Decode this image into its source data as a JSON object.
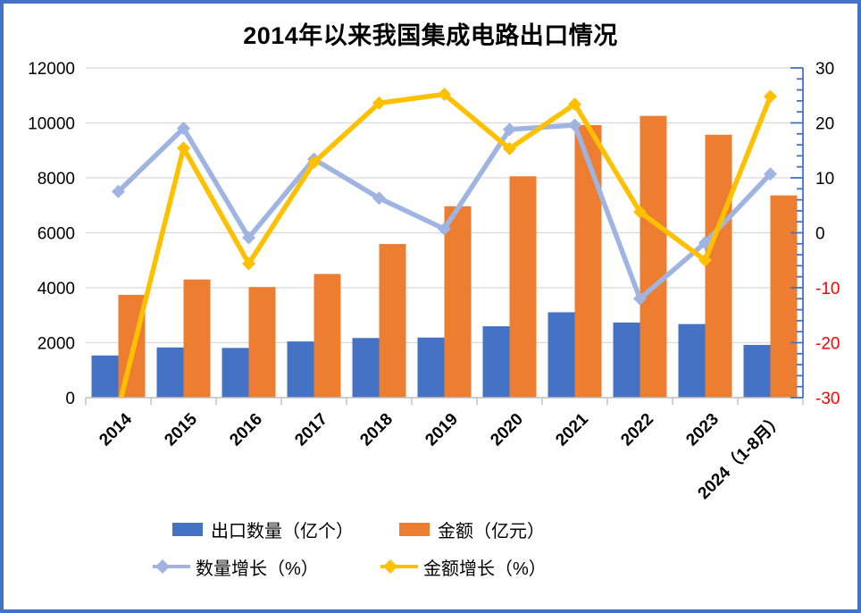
{
  "window": {
    "border_color": "#4472C4",
    "background": "#FFFFFF"
  },
  "title": "2014年以来我国集成电路出口情况",
  "chart_data": {
    "type": "combo (bar + line)",
    "categories": [
      "2014",
      "2015",
      "2016",
      "2017",
      "2018",
      "2019",
      "2020",
      "2021",
      "2022",
      "2023",
      "2024（1-8月）"
    ],
    "series": [
      {
        "name": "出口数量（亿个）",
        "type": "bar",
        "axis": "left",
        "color": "#4472C4",
        "values": [
          1535,
          1827,
          1810,
          2045,
          2171,
          2187,
          2598,
          3107,
          2734,
          2678,
          1918
        ]
      },
      {
        "name": "金额（亿元）",
        "type": "bar",
        "axis": "left",
        "color": "#ED7D31",
        "values": [
          3742,
          4300,
          4025,
          4500,
          5591,
          6965,
          8056,
          9920,
          10254,
          9568,
          7360
        ]
      },
      {
        "name": "数量增长（%）",
        "type": "line",
        "axis": "right",
        "color": "#A0B4E2",
        "marker": "diamond",
        "values": [
          7.5,
          19.0,
          -0.9,
          13.4,
          6.3,
          0.7,
          18.8,
          19.6,
          -12.0,
          -1.8,
          10.7
        ]
      },
      {
        "name": "金额增长（%）",
        "type": "line",
        "axis": "right",
        "color": "#FFC000",
        "marker": "diamond",
        "values": [
          -32,
          15.4,
          -5.6,
          12.8,
          23.6,
          25.2,
          15.3,
          23.4,
          3.8,
          -5.0,
          24.8
        ]
      }
    ],
    "left_axis": {
      "min": 0,
      "max": 12000,
      "step": 2000,
      "tick_labels": [
        "12000",
        "10000",
        "8000",
        "6000",
        "4000",
        "2000",
        "0"
      ]
    },
    "right_axis": {
      "min": -30,
      "max": 30,
      "step": 10,
      "minor_tick_step": 2,
      "tick_labels": [
        "30",
        "20",
        "10",
        "0",
        "-10",
        "-20",
        "-30"
      ],
      "negative_label_color": "#FF0000",
      "axis_color": "#4472C4"
    },
    "grid": true,
    "gridline_color": "#D9D9D9",
    "x_axis_color": "#BFBFBF",
    "x_tick_label_rotation_deg": 45,
    "legend_position": "bottom"
  }
}
